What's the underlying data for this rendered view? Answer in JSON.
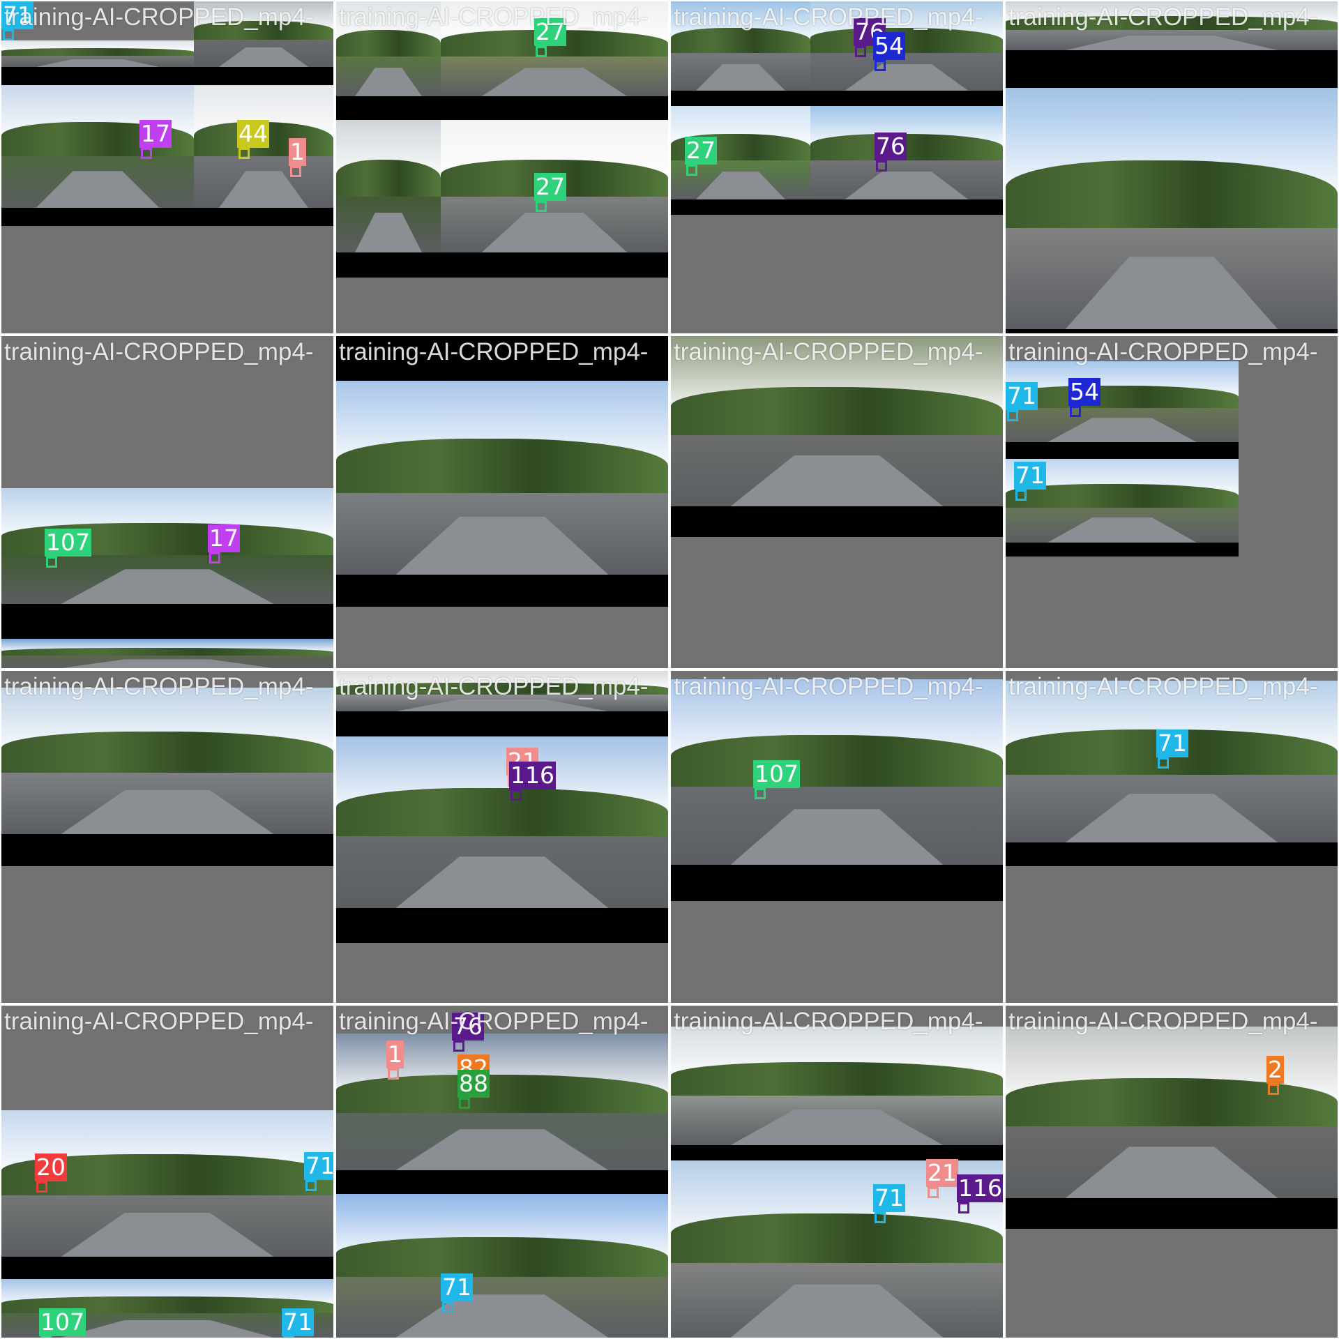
{
  "tiles": [
    {
      "caption": "training-AI-CROPPED_mp4-",
      "labels": [
        "71",
        "17",
        "44",
        "1"
      ]
    },
    {
      "caption": "training-AI-CROPPED_mp4-",
      "labels": [
        "27",
        "27"
      ]
    },
    {
      "caption": "training-AI-CROPPED_mp4-",
      "labels": [
        "76",
        "54",
        "27",
        "76"
      ]
    },
    {
      "caption": "training-AI-CROPPED_mp4-",
      "labels": []
    },
    {
      "caption": "training-AI-CROPPED_mp4-",
      "labels": [
        "107",
        "17"
      ]
    },
    {
      "caption": "training-AI-CROPPED_mp4-",
      "labels": []
    },
    {
      "caption": "training-AI-CROPPED_mp4-",
      "labels": []
    },
    {
      "caption": "training-AI-CROPPED_mp4-",
      "labels": [
        "71",
        "71",
        "54"
      ]
    },
    {
      "caption": "training-AI-CROPPED_mp4-",
      "labels": []
    },
    {
      "caption": "training-AI-CROPPED_mp4-",
      "labels": [
        "21",
        "116"
      ]
    },
    {
      "caption": "training-AI-CROPPED_mp4-",
      "labels": [
        "107"
      ]
    },
    {
      "caption": "training-AI-CROPPED_mp4-",
      "labels": [
        "71"
      ]
    },
    {
      "caption": "training-AI-CROPPED_mp4-",
      "labels": [
        "20",
        "71",
        "107",
        "71"
      ]
    },
    {
      "caption": "training-AI-CROPPED_mp4-",
      "labels": [
        "76",
        "1",
        "82",
        "88",
        "71"
      ]
    },
    {
      "caption": "training-AI-CROPPED_mp4-",
      "labels": [
        "21",
        "116",
        "71"
      ]
    },
    {
      "caption": "training-AI-CROPPED_mp4-",
      "labels": [
        "2"
      ]
    }
  ],
  "colors": {
    "71": "#1fb8e8",
    "17": "#c040f0",
    "44": "#c8c81e",
    "1": "#f08c8c",
    "27": "#2ed27a",
    "76": "#5a1a8c",
    "54": "#1e28d2",
    "107": "#2ed27a",
    "21": "#f08c8c",
    "116": "#5a1a8c",
    "20": "#f03c3c",
    "82": "#f07820",
    "88": "#28a03c",
    "2": "#f07820"
  }
}
